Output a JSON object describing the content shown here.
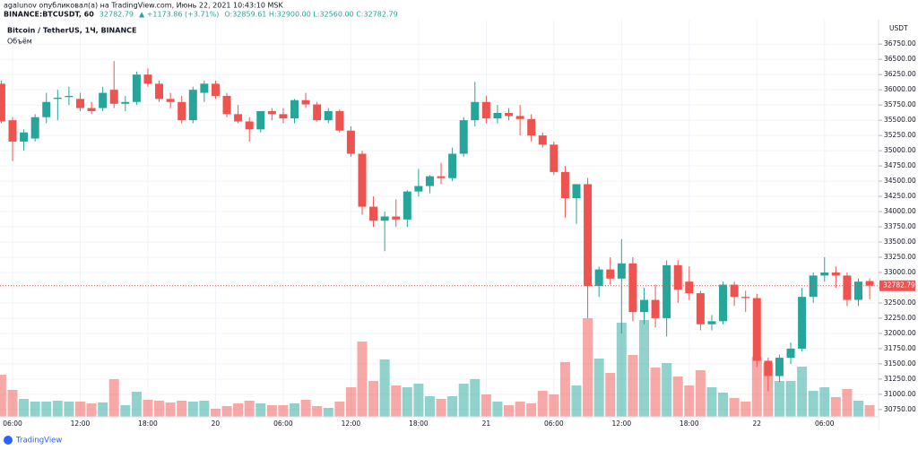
{
  "header": {
    "publisher": "agalunov опубликовал(а) на TradingView.com, Июнь 22, 2021 10:43:10 MSK",
    "symbol": "BINANCE:BTCUSDT, 60",
    "price": "32782.79",
    "change": "▲ +1173.86 (+3.71%)",
    "ohlc": "O:32859.61 H:32900.00 L:32560.00 C:32782.79"
  },
  "footer": "TradingView",
  "chart_data": {
    "type": "candlestick",
    "title": "Bitcoin / TetherUS, 1Ч, BINANCE",
    "y_unit": "USDT",
    "up_color": "#26a69a",
    "down_color": "#ef5350",
    "grid": true,
    "categories": [
      null,
      "06:00",
      null,
      null,
      null,
      null,
      null,
      "12:00",
      null,
      null,
      null,
      null,
      null,
      "18:00",
      null,
      null,
      null,
      null,
      null,
      "20",
      null,
      null,
      null,
      null,
      null,
      "06:00",
      null,
      null,
      null,
      null,
      null,
      "12:00",
      null,
      null,
      null,
      null,
      null,
      "18:00",
      null,
      null,
      null,
      null,
      null,
      "21",
      null,
      null,
      null,
      null,
      null,
      "06:00",
      null,
      null,
      null,
      null,
      null,
      "12:00",
      null,
      null,
      null,
      null,
      null,
      "18:00",
      null,
      null,
      null,
      null,
      null,
      "22",
      null,
      null,
      null,
      null,
      null,
      "06:00",
      null,
      null,
      null,
      null
    ],
    "open": [
      36100,
      35500,
      35150,
      35200,
      35550,
      35850,
      35880,
      35850,
      35700,
      35700,
      36000,
      35770,
      35800,
      36250,
      36100,
      35850,
      35800,
      35500,
      35950,
      36100,
      35900,
      35600,
      35480,
      35350,
      35650,
      35600,
      35530,
      35830,
      35760,
      35500,
      35650,
      35330,
      34950,
      34080,
      33850,
      33920,
      33870,
      34330,
      34420,
      34580,
      34550,
      34950,
      35500,
      35800,
      35530,
      35620,
      35570,
      35520,
      35250,
      35100,
      34650,
      34220,
      34450,
      32780,
      33050,
      32900,
      33150,
      32350,
      32550,
      32250,
      33120,
      32850,
      32660,
      32150,
      32200,
      32800,
      32600,
      32580,
      31550,
      31300,
      31600,
      31750,
      32600,
      32950,
      33000,
      32950,
      32550,
      32859.61
    ],
    "high": [
      36150,
      35550,
      35350,
      35600,
      35950,
      36000,
      36050,
      35950,
      35800,
      36050,
      36470,
      35900,
      36300,
      36350,
      36150,
      35950,
      35900,
      36050,
      36150,
      36150,
      35950,
      35750,
      35550,
      35650,
      35700,
      35700,
      35850,
      35950,
      35800,
      35700,
      35680,
      35400,
      35000,
      34250,
      34000,
      34200,
      34350,
      34700,
      34600,
      34800,
      35050,
      35550,
      36130,
      35900,
      35750,
      35700,
      35750,
      35600,
      35300,
      35150,
      34750,
      34450,
      34550,
      33100,
      33250,
      33550,
      33250,
      32750,
      32800,
      33200,
      33200,
      33100,
      32700,
      32300,
      32850,
      32850,
      32700,
      32650,
      31600,
      31650,
      31850,
      32750,
      33000,
      33250,
      33100,
      33000,
      32900,
      32900
    ],
    "low": [
      35450,
      34830,
      35000,
      35150,
      35450,
      35500,
      35750,
      35650,
      35600,
      35650,
      35700,
      35650,
      35750,
      36050,
      35800,
      35700,
      35450,
      35450,
      35800,
      35850,
      35550,
      35450,
      35150,
      35300,
      35500,
      35450,
      35450,
      35700,
      35480,
      35450,
      35300,
      34900,
      33950,
      33750,
      33350,
      33750,
      33750,
      34250,
      34300,
      34450,
      34500,
      34900,
      35400,
      35450,
      35450,
      35500,
      35250,
      35150,
      35050,
      34600,
      33900,
      33800,
      32250,
      32600,
      32800,
      32000,
      32200,
      32150,
      32100,
      31950,
      32500,
      32550,
      32050,
      32050,
      32150,
      32450,
      32350,
      31450,
      31050,
      31200,
      31500,
      31700,
      32500,
      32850,
      32750,
      32450,
      32450,
      32560
    ],
    "close": [
      35480,
      35150,
      35300,
      35550,
      35800,
      35870,
      35900,
      35700,
      35650,
      35950,
      35770,
      35800,
      36250,
      36100,
      35850,
      35800,
      35500,
      36000,
      36100,
      35900,
      35600,
      35480,
      35350,
      35650,
      35600,
      35530,
      35830,
      35760,
      35500,
      35650,
      35330,
      34950,
      34080,
      33850,
      33920,
      33870,
      34330,
      34420,
      34580,
      34550,
      34950,
      35500,
      35800,
      35530,
      35620,
      35570,
      35520,
      35250,
      35100,
      34650,
      34220,
      34450,
      32780,
      33050,
      32900,
      33150,
      32350,
      32550,
      32250,
      33120,
      32720,
      32660,
      32150,
      32200,
      32800,
      32600,
      32580,
      31550,
      31300,
      31600,
      31750,
      32600,
      32950,
      33000,
      32950,
      32550,
      32850,
      32782.79
    ],
    "volume": {
      "name": "Объём",
      "values": [
        47,
        30,
        20,
        17,
        17,
        18,
        17,
        17,
        15,
        16,
        42,
        13,
        28,
        19,
        18,
        16,
        18,
        17,
        18,
        9,
        12,
        15,
        18,
        15,
        13,
        13,
        15,
        19,
        12,
        10,
        17,
        33,
        84,
        40,
        64,
        35,
        33,
        37,
        23,
        20,
        23,
        37,
        42,
        25,
        17,
        13,
        17,
        15,
        29,
        25,
        61,
        35,
        110,
        65,
        49,
        105,
        69,
        108,
        55,
        60,
        45,
        35,
        52,
        33,
        27,
        21,
        17,
        67,
        60,
        40,
        40,
        56,
        29,
        33,
        22,
        31,
        18,
        13
      ]
    },
    "ylim": [
      30630,
      37180
    ],
    "yticks": [
      {
        "value": 30750,
        "label": "30750.00"
      },
      {
        "value": 31000,
        "label": "31000.00"
      },
      {
        "value": 31250,
        "label": "31250.00"
      },
      {
        "value": 31500,
        "label": "31500.00"
      },
      {
        "value": 31750,
        "label": "31750.00"
      },
      {
        "value": 32000,
        "label": "32000.00"
      },
      {
        "value": 32250,
        "label": "32250.00"
      },
      {
        "value": 32500,
        "label": "32500.00"
      },
      {
        "value": 32750,
        "label": "32750.00"
      },
      {
        "value": 33000,
        "label": "33000.00"
      },
      {
        "value": 33250,
        "label": "33250.00"
      },
      {
        "value": 33500,
        "label": "33500.00"
      },
      {
        "value": 33750,
        "label": "33750.00"
      },
      {
        "value": 34000,
        "label": "34000.00"
      },
      {
        "value": 34250,
        "label": "34250.00"
      },
      {
        "value": 34500,
        "label": "34500.00"
      },
      {
        "value": 34750,
        "label": "34750.00"
      },
      {
        "value": 35000,
        "label": "35000.00"
      },
      {
        "value": 35250,
        "label": "35250.00"
      },
      {
        "value": 35500,
        "label": "35500.00"
      },
      {
        "value": 35750,
        "label": "35750.00"
      },
      {
        "value": 36000,
        "label": "36000.00"
      },
      {
        "value": 36250,
        "label": "36250.00"
      },
      {
        "value": 36500,
        "label": "36500.00"
      },
      {
        "value": 36750,
        "label": "36750.00"
      }
    ]
  }
}
